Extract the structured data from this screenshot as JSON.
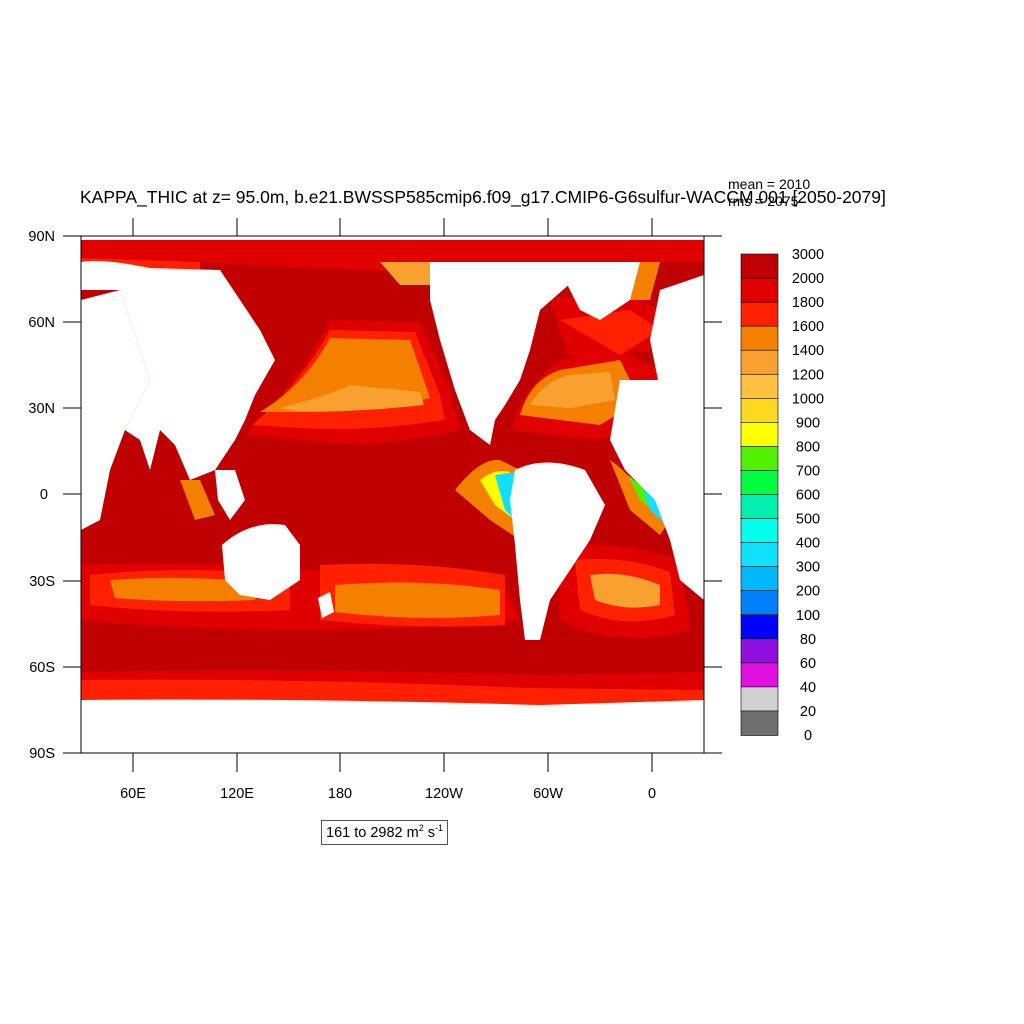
{
  "title": "KAPPA_THIC at z=  95.0m, b.e21.BWSSP585cmip6.f09_g17.CMIP6-G6sulfur-WACCM.001 [2050-2079]",
  "stats": {
    "mean": "mean = 2010",
    "rms": "rms = 2075"
  },
  "lat_ticks": [
    "90N",
    "60N",
    "30N",
    "0",
    "30S",
    "60S",
    "90S"
  ],
  "lon_ticks": [
    "60E",
    "120E",
    "180",
    "120W",
    "60W",
    "0"
  ],
  "range": {
    "prefix": "161 to 2982 m",
    "exp1": "2",
    "mid": " s",
    "exp2": "-1"
  },
  "colorbar": {
    "labels": [
      "3000",
      "2000",
      "1800",
      "1600",
      "1400",
      "1200",
      "1000",
      "900",
      "800",
      "700",
      "600",
      "500",
      "400",
      "300",
      "200",
      "100",
      "80",
      "60",
      "40",
      "20",
      "0"
    ],
    "colors": [
      "#c00000",
      "#e00000",
      "#ff2000",
      "#f58000",
      "#f8a030",
      "#ffc040",
      "#ffd820",
      "#ffff00",
      "#50f000",
      "#00ff40",
      "#00f0b0",
      "#00ffee",
      "#10e0ff",
      "#00b8ff",
      "#0080ff",
      "#0000ff",
      "#9010e0",
      "#e010e0",
      "#d0d0d0",
      "#707070"
    ]
  },
  "colors": {
    "ocean_deep": "#c00000",
    "ocean_mid": "#e00000",
    "land": "#ffffff"
  }
}
